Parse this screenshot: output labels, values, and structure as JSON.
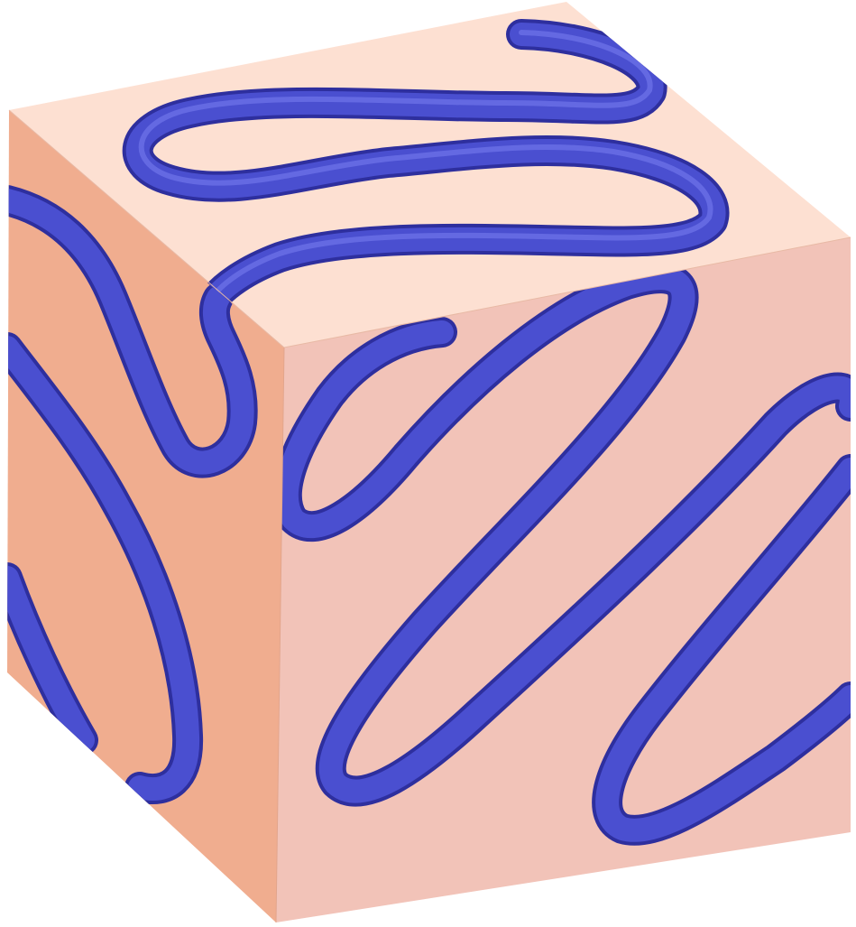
{
  "colors": {
    "background": "#ffffff",
    "face_top": "#fde0d2",
    "face_left": "#f0ad8f",
    "face_right": "#f2c3b8",
    "tube": "#4a4fd0",
    "tube_shade": "#2e2f9e",
    "tube_highlight": "#7a7ff0"
  }
}
